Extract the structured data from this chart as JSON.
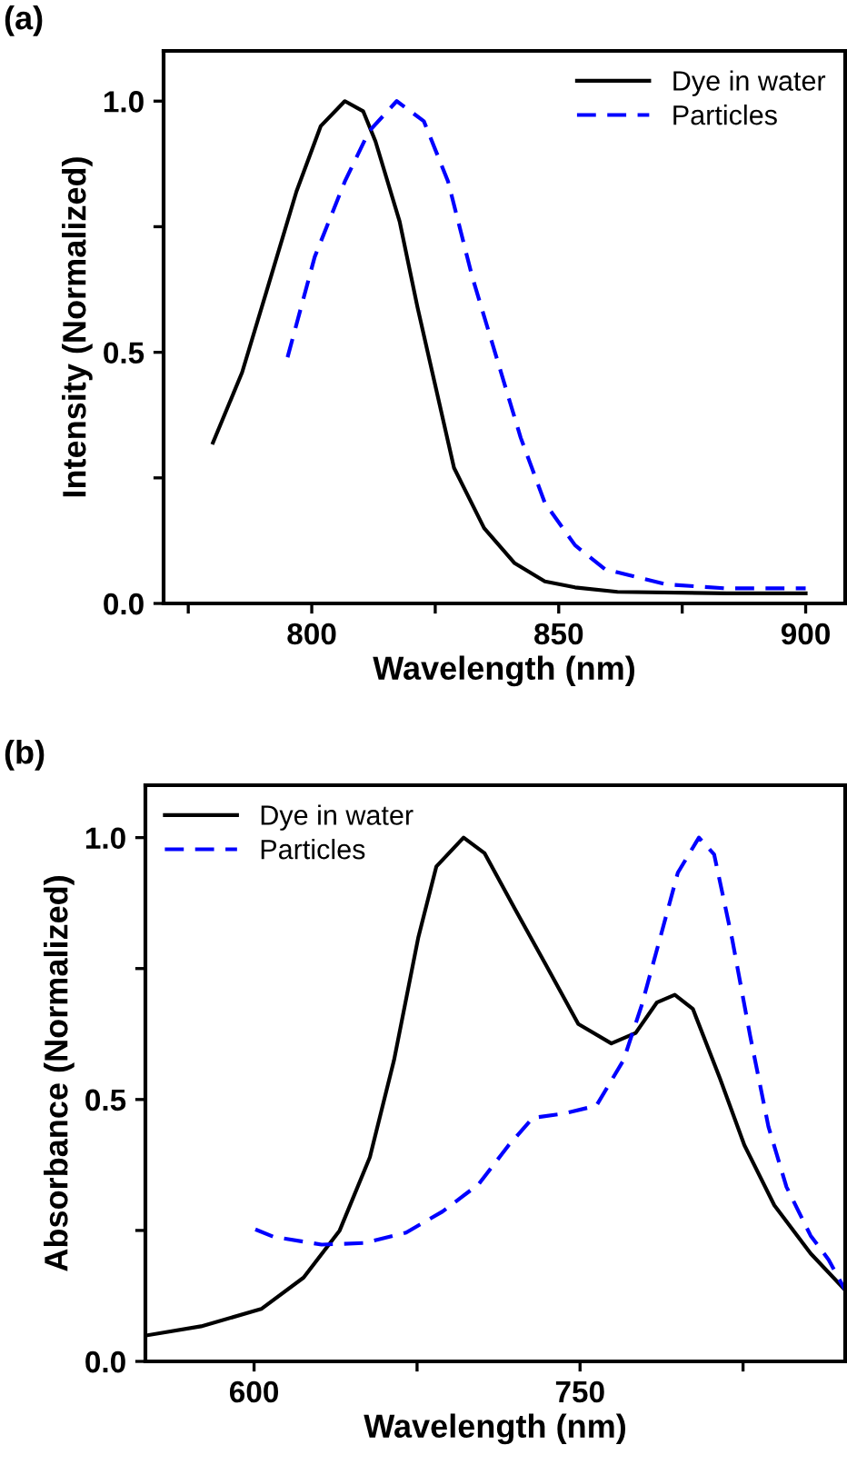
{
  "chart_data": [
    {
      "type": "line",
      "title": "(a)",
      "xlabel": "Wavelength (nm)",
      "ylabel": "Intensity (Normalized)",
      "xlim": [
        770,
        908
      ],
      "ylim": [
        0,
        1.1
      ],
      "xticks": [
        {
          "value": 775,
          "label": null
        },
        800,
        {
          "value": 825,
          "label": null
        },
        850,
        {
          "value": 875,
          "label": null
        },
        900
      ],
      "yticks": [
        {
          "value": 0,
          "label": "0.0"
        },
        {
          "value": 0.25,
          "label": null
        },
        {
          "value": 0.5,
          "label": "0.5"
        },
        {
          "value": 0.75,
          "label": null
        },
        {
          "value": 1.0,
          "label": "1.0"
        }
      ],
      "grid": false,
      "legend": "top right",
      "series": [
        {
          "name": "Dye in water",
          "color": "#000000",
          "line_style": "solid",
          "x": [
            780,
            785.9,
            790.8,
            796.9,
            801.8,
            806.7,
            810.4,
            812.9,
            817.8,
            821.4,
            825.1,
            828.8,
            834.9,
            841.1,
            847.2,
            853.3,
            861.9,
            884,
            900
          ],
          "values": [
            0.32,
            0.46,
            0.62,
            0.82,
            0.95,
            1.0,
            0.98,
            0.92,
            0.76,
            0.59,
            0.43,
            0.27,
            0.15,
            0.08,
            0.044,
            0.032,
            0.023,
            0.02,
            0.02
          ]
        },
        {
          "name": "Particles",
          "color": "#0000ff",
          "line_style": "dashed",
          "x": [
            795.1,
            800.6,
            806.7,
            811.6,
            817.2,
            822.7,
            827.6,
            832.5,
            837.4,
            842.3,
            847.2,
            853.3,
            859.4,
            871.7,
            884,
            900
          ],
          "values": [
            0.49,
            0.69,
            0.84,
            0.94,
            1.0,
            0.96,
            0.84,
            0.65,
            0.49,
            0.33,
            0.2,
            0.116,
            0.068,
            0.038,
            0.03,
            0.03
          ]
        }
      ]
    },
    {
      "type": "line",
      "title": "(b)",
      "xlabel": "Wavelength (nm)",
      "ylabel": "Absorbance (Normalized)",
      "xlim": [
        550,
        872
      ],
      "ylim": [
        0,
        1.1
      ],
      "xticks": [
        600,
        {
          "value": 675,
          "label": null
        },
        750,
        {
          "value": 825,
          "label": null
        }
      ],
      "yticks": [
        {
          "value": 0,
          "label": "0.0"
        },
        {
          "value": 0.25,
          "label": null
        },
        {
          "value": 0.5,
          "label": "0.5"
        },
        {
          "value": 0.75,
          "label": null
        },
        {
          "value": 1.0,
          "label": "1.0"
        }
      ],
      "grid": false,
      "legend": "top left",
      "series": [
        {
          "name": "Dye in water",
          "color": "#000000",
          "line_style": "solid",
          "x": [
            551,
            575.6,
            603.3,
            622.8,
            639.4,
            653.3,
            664.4,
            675.6,
            683.9,
            696.4,
            706.1,
            720,
            733.9,
            749.2,
            764.4,
            775.6,
            785.3,
            793.6,
            801.9,
            814.4,
            825.6,
            839.4,
            856.1,
            872
          ],
          "values": [
            0.05,
            0.067,
            0.1,
            0.16,
            0.25,
            0.39,
            0.575,
            0.81,
            0.945,
            1.0,
            0.97,
            0.864,
            0.76,
            0.644,
            0.607,
            0.627,
            0.685,
            0.7,
            0.673,
            0.54,
            0.413,
            0.298,
            0.206,
            0.136
          ]
        },
        {
          "name": "Particles",
          "color": "#0000ff",
          "line_style": "dashed",
          "x": [
            600.6,
            608.9,
            631.1,
            650.6,
            670,
            686.7,
            703.3,
            717.2,
            728.3,
            742.2,
            757.5,
            770,
            778.3,
            786.7,
            795,
            804.7,
            811.7,
            820,
            828.3,
            836.7,
            845,
            856.1,
            864.4,
            872
          ],
          "values": [
            0.252,
            0.238,
            0.223,
            0.226,
            0.246,
            0.286,
            0.338,
            0.413,
            0.465,
            0.473,
            0.488,
            0.575,
            0.679,
            0.806,
            0.933,
            1.0,
            0.968,
            0.806,
            0.621,
            0.448,
            0.333,
            0.24,
            0.194,
            0.136
          ]
        }
      ]
    }
  ]
}
